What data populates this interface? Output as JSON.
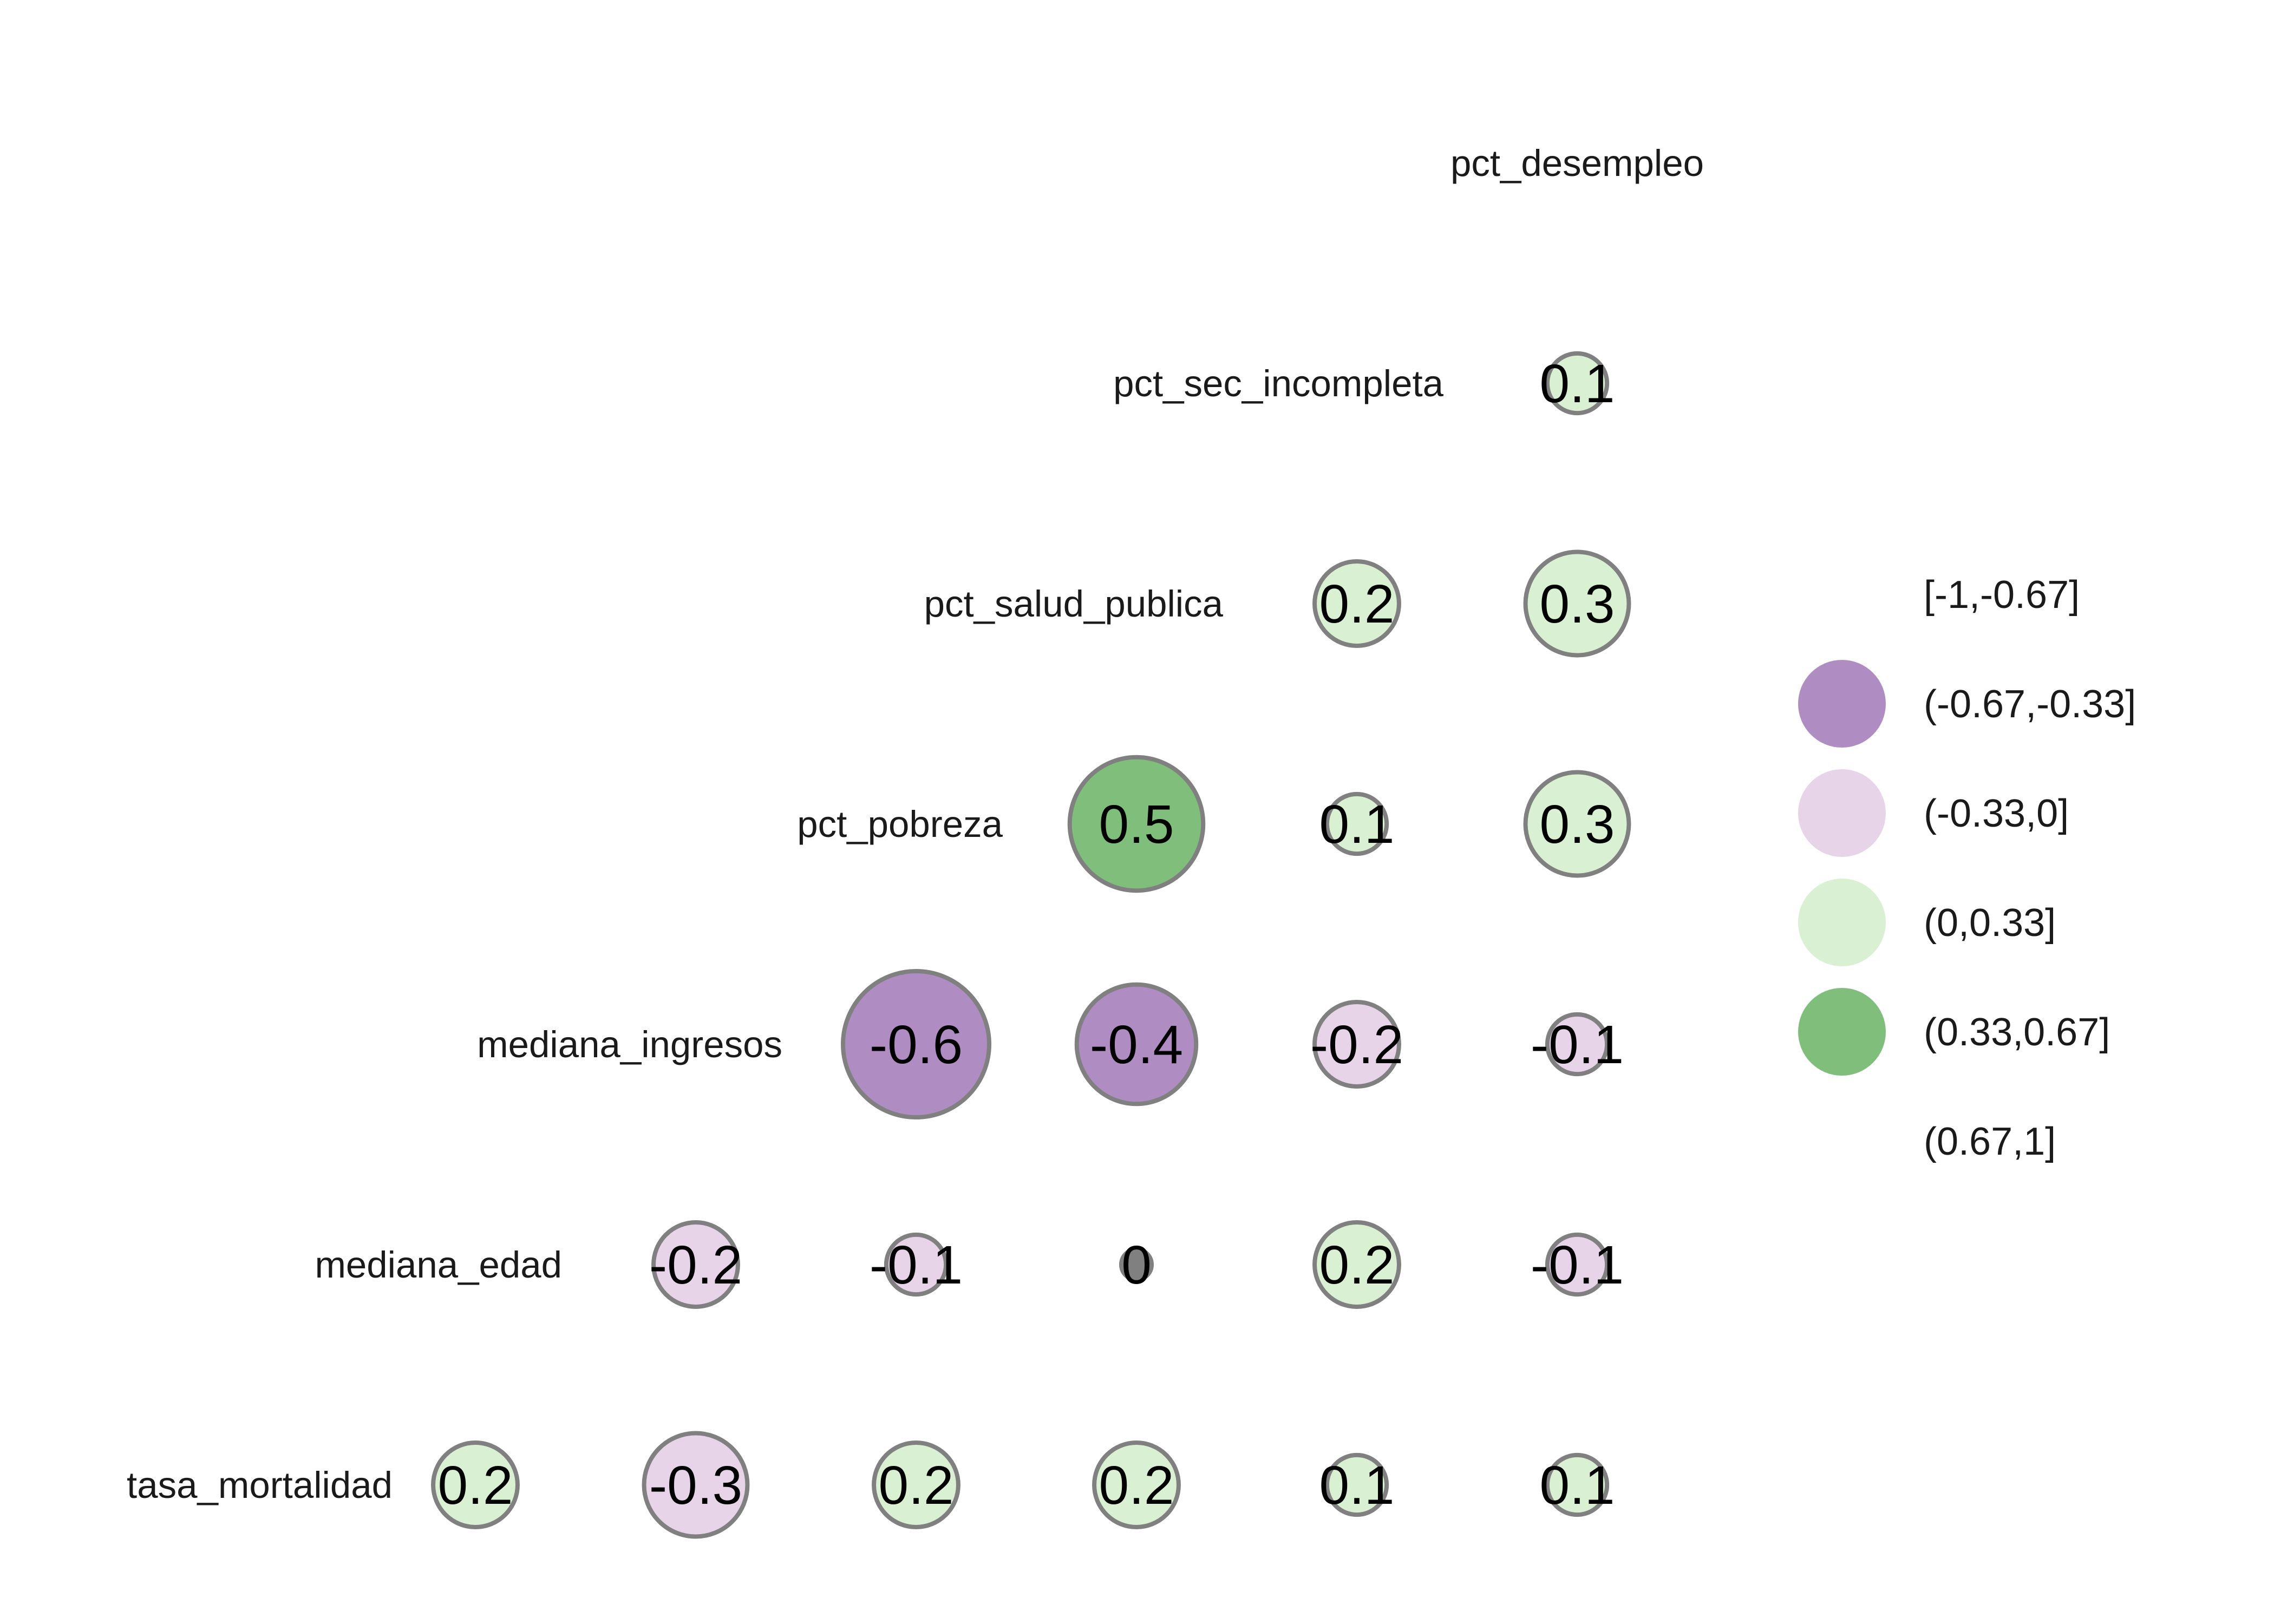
{
  "chart_data": {
    "type": "correlation-matrix",
    "variables": [
      "tasa_mortalidad",
      "mediana_edad",
      "mediana_ingresos",
      "pct_pobreza",
      "pct_salud_publica",
      "pct_sec_incompleta",
      "pct_desempleo"
    ],
    "cells": [
      {
        "row": "pct_sec_incompleta",
        "col": "pct_desempleo",
        "value": 0.1,
        "label": "0.1"
      },
      {
        "row": "pct_salud_publica",
        "col": "pct_sec_incompleta",
        "value": 0.2,
        "label": "0.2"
      },
      {
        "row": "pct_salud_publica",
        "col": "pct_desempleo",
        "value": 0.3,
        "label": "0.3"
      },
      {
        "row": "pct_pobreza",
        "col": "pct_salud_publica",
        "value": 0.5,
        "label": "0.5"
      },
      {
        "row": "pct_pobreza",
        "col": "pct_sec_incompleta",
        "value": 0.1,
        "label": "0.1"
      },
      {
        "row": "pct_pobreza",
        "col": "pct_desempleo",
        "value": 0.3,
        "label": "0.3"
      },
      {
        "row": "mediana_ingresos",
        "col": "pct_pobreza",
        "value": -0.6,
        "label": "-0.6"
      },
      {
        "row": "mediana_ingresos",
        "col": "pct_salud_publica",
        "value": -0.4,
        "label": "-0.4"
      },
      {
        "row": "mediana_ingresos",
        "col": "pct_sec_incompleta",
        "value": -0.2,
        "label": "-0.2"
      },
      {
        "row": "mediana_ingresos",
        "col": "pct_desempleo",
        "value": -0.1,
        "label": "-0.1"
      },
      {
        "row": "mediana_edad",
        "col": "mediana_ingresos",
        "value": -0.2,
        "label": "-0.2"
      },
      {
        "row": "mediana_edad",
        "col": "pct_pobreza",
        "value": -0.1,
        "label": "-0.1"
      },
      {
        "row": "mediana_edad",
        "col": "pct_salud_publica",
        "value": 0.0,
        "label": "0"
      },
      {
        "row": "mediana_edad",
        "col": "pct_sec_incompleta",
        "value": 0.2,
        "label": "0.2"
      },
      {
        "row": "mediana_edad",
        "col": "pct_desempleo",
        "value": -0.1,
        "label": "-0.1"
      },
      {
        "row": "tasa_mortalidad",
        "col": "mediana_edad",
        "value": 0.2,
        "label": "0.2"
      },
      {
        "row": "tasa_mortalidad",
        "col": "mediana_ingresos",
        "value": -0.3,
        "label": "-0.3"
      },
      {
        "row": "tasa_mortalidad",
        "col": "pct_pobreza",
        "value": 0.2,
        "label": "0.2"
      },
      {
        "row": "tasa_mortalidad",
        "col": "pct_salud_publica",
        "value": 0.2,
        "label": "0.2"
      },
      {
        "row": "tasa_mortalidad",
        "col": "pct_sec_incompleta",
        "value": 0.1,
        "label": "0.1"
      },
      {
        "row": "tasa_mortalidad",
        "col": "pct_desempleo",
        "value": 0.1,
        "label": "0.1"
      }
    ],
    "legend": {
      "placement": "right",
      "entries": [
        {
          "label": "[-1,-0.67]",
          "color": ""
        },
        {
          "label": "(-0.67,-0.33]",
          "color": "#af8dc3"
        },
        {
          "label": "(-0.33,0]",
          "color": "#e7d4e8"
        },
        {
          "label": "(0,0.33]",
          "color": "#d9f0d3"
        },
        {
          "label": "(0.33,0.67]",
          "color": "#7fbf7b"
        },
        {
          "label": "(0.67,1]",
          "color": ""
        }
      ]
    },
    "grid": false
  }
}
